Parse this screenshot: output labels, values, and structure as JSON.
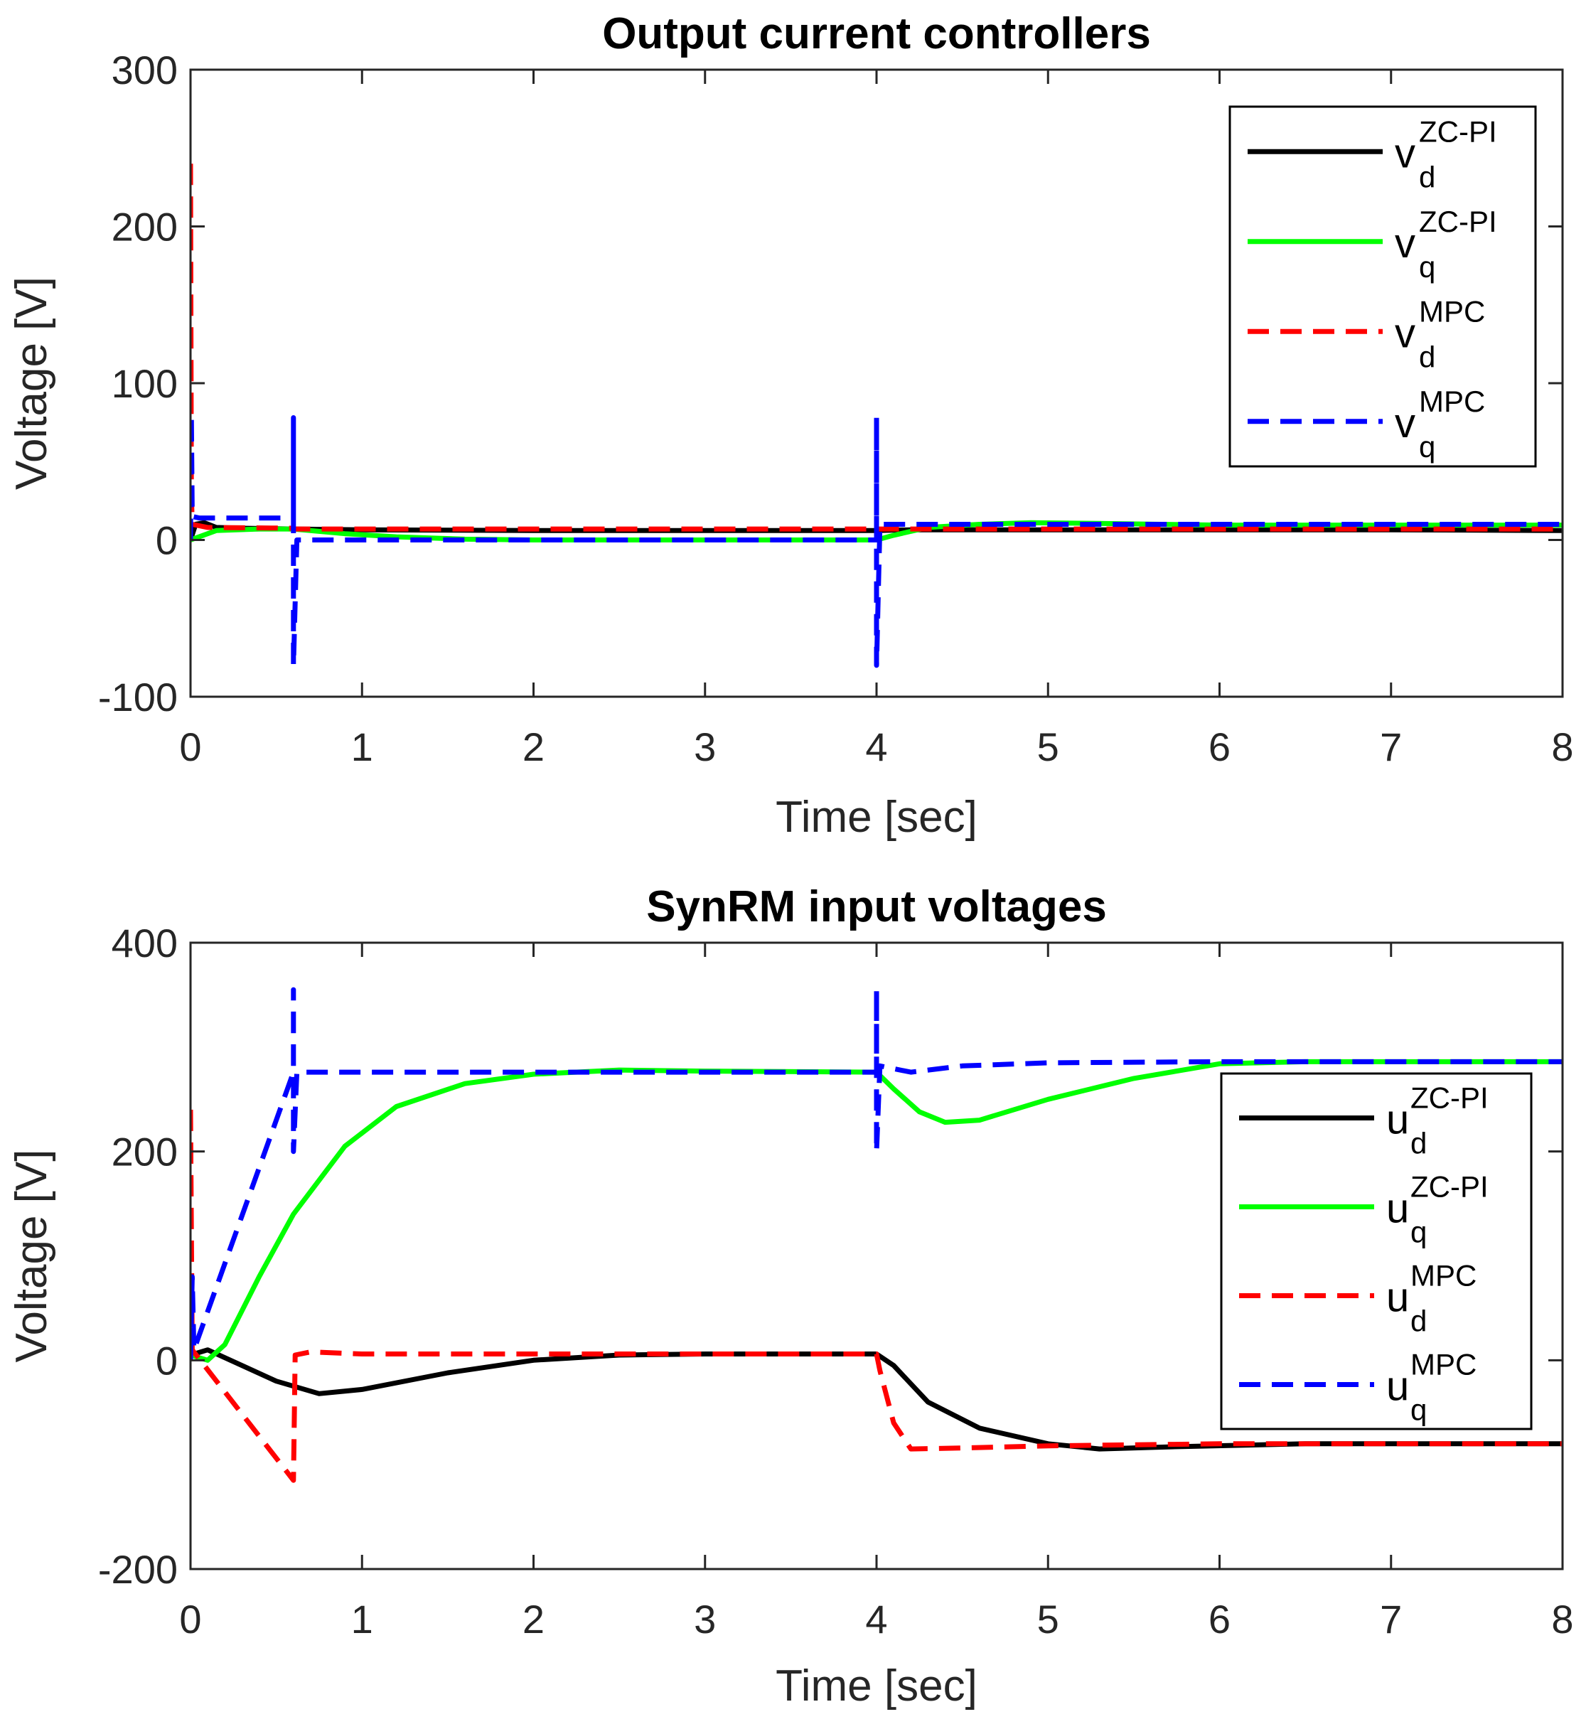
{
  "chart_data": [
    {
      "type": "line",
      "title": "Output current controllers",
      "xlabel": "Time [sec]",
      "ylabel": "Voltage [V]",
      "xlim": [
        0,
        8
      ],
      "ylim": [
        -100,
        300
      ],
      "xticks": [
        0,
        1,
        2,
        3,
        4,
        5,
        6,
        7,
        8
      ],
      "yticks": [
        -100,
        0,
        100,
        200,
        300
      ],
      "xtick_labels": [
        "0",
        "1",
        "2",
        "3",
        "4",
        "5",
        "6",
        "7",
        "8"
      ],
      "ytick_labels": [
        "-100",
        "0",
        "100",
        "200",
        "300"
      ],
      "grid": false,
      "legend_position": "top-right",
      "series": [
        {
          "base": "v",
          "sup": "ZC-PI",
          "sub": "d",
          "color": "#000000",
          "dash": "solid",
          "points": [
            [
              0,
              0
            ],
            [
              0.03,
              10
            ],
            [
              0.08,
              11
            ],
            [
              0.15,
              8
            ],
            [
              0.3,
              7.5
            ],
            [
              0.6,
              7
            ],
            [
              1,
              6.5
            ],
            [
              2,
              6
            ],
            [
              3,
              6
            ],
            [
              4,
              6
            ],
            [
              4.2,
              6.5
            ],
            [
              5,
              6.5
            ],
            [
              6,
              6.5
            ],
            [
              7,
              6.5
            ],
            [
              8,
              6
            ]
          ]
        },
        {
          "base": "v",
          "sup": "ZC-PI",
          "sub": "q",
          "color": "#00ff00",
          "dash": "solid",
          "points": [
            [
              0,
              0
            ],
            [
              0.05,
              2
            ],
            [
              0.15,
              6
            ],
            [
              0.4,
              7
            ],
            [
              0.6,
              7
            ],
            [
              0.9,
              4
            ],
            [
              1.2,
              2
            ],
            [
              1.6,
              0.5
            ],
            [
              2,
              0
            ],
            [
              3,
              0
            ],
            [
              4,
              0
            ],
            [
              4.1,
              3
            ],
            [
              4.3,
              8
            ],
            [
              4.6,
              10
            ],
            [
              4.9,
              11
            ],
            [
              5.3,
              10.5
            ],
            [
              6,
              9.5
            ],
            [
              7,
              9.5
            ],
            [
              8,
              9.5
            ]
          ]
        },
        {
          "base": "v",
          "sup": "MPC",
          "sub": "d",
          "color": "#ff0000",
          "dash": "dashed",
          "points": [
            [
              0,
              240
            ],
            [
              0.005,
              30
            ],
            [
              0.01,
              10
            ],
            [
              0.1,
              8
            ],
            [
              0.6,
              7.5
            ],
            [
              0.61,
              7
            ],
            [
              1,
              7
            ],
            [
              2,
              7
            ],
            [
              3,
              7
            ],
            [
              4,
              7
            ],
            [
              4.05,
              7
            ],
            [
              5,
              7
            ],
            [
              6,
              7
            ],
            [
              7,
              7
            ],
            [
              8,
              7
            ]
          ]
        },
        {
          "base": "v",
          "sup": "MPC",
          "sub": "q",
          "color": "#0000ff",
          "dash": "dashed",
          "points": [
            [
              0,
              0
            ],
            [
              0.005,
              80
            ],
            [
              0.01,
              15
            ],
            [
              0.05,
              14
            ],
            [
              0.6,
              14
            ],
            [
              0.6,
              78
            ],
            [
              0.6,
              -80
            ],
            [
              0.62,
              0
            ],
            [
              1,
              0
            ],
            [
              2,
              0
            ],
            [
              3,
              0
            ],
            [
              4,
              0
            ],
            [
              4,
              78
            ],
            [
              4,
              -80
            ],
            [
              4.02,
              10
            ],
            [
              5,
              10
            ],
            [
              6,
              10
            ],
            [
              7,
              10
            ],
            [
              8,
              10
            ]
          ]
        }
      ]
    },
    {
      "type": "line",
      "title": "SynRM input voltages",
      "xlabel": "Time [sec]",
      "ylabel": "Voltage [V]",
      "xlim": [
        0,
        8
      ],
      "ylim": [
        -200,
        400
      ],
      "xticks": [
        0,
        1,
        2,
        3,
        4,
        5,
        6,
        7,
        8
      ],
      "yticks": [
        -200,
        0,
        200,
        400
      ],
      "xtick_labels": [
        "0",
        "1",
        "2",
        "3",
        "4",
        "5",
        "6",
        "7",
        "8"
      ],
      "ytick_labels": [
        "-200",
        "0",
        "200",
        "400"
      ],
      "grid": false,
      "legend_position": "right",
      "series": [
        {
          "base": "u",
          "sup": "ZC-PI",
          "sub": "d",
          "color": "#000000",
          "dash": "solid",
          "points": [
            [
              0,
              5
            ],
            [
              0.1,
              10
            ],
            [
              0.3,
              -5
            ],
            [
              0.5,
              -20
            ],
            [
              0.75,
              -32
            ],
            [
              1,
              -28
            ],
            [
              1.5,
              -12
            ],
            [
              2,
              0
            ],
            [
              2.5,
              5
            ],
            [
              3,
              6
            ],
            [
              3.5,
              6
            ],
            [
              4,
              6
            ],
            [
              4.1,
              -5
            ],
            [
              4.3,
              -40
            ],
            [
              4.6,
              -65
            ],
            [
              5,
              -80
            ],
            [
              5.3,
              -85
            ],
            [
              5.7,
              -83
            ],
            [
              6.5,
              -80
            ],
            [
              7,
              -80
            ],
            [
              8,
              -80
            ]
          ]
        },
        {
          "base": "u",
          "sup": "ZC-PI",
          "sub": "q",
          "color": "#00ff00",
          "dash": "solid",
          "points": [
            [
              0,
              5
            ],
            [
              0.1,
              0
            ],
            [
              0.2,
              15
            ],
            [
              0.4,
              80
            ],
            [
              0.6,
              140
            ],
            [
              0.9,
              205
            ],
            [
              1.2,
              243
            ],
            [
              1.6,
              265
            ],
            [
              2,
              274
            ],
            [
              2.5,
              278
            ],
            [
              3,
              277
            ],
            [
              4,
              276
            ],
            [
              4.1,
              260
            ],
            [
              4.25,
              238
            ],
            [
              4.4,
              228
            ],
            [
              4.6,
              230
            ],
            [
              5,
              250
            ],
            [
              5.5,
              270
            ],
            [
              6,
              284
            ],
            [
              6.5,
              286
            ],
            [
              7,
              286
            ],
            [
              8,
              286
            ]
          ]
        },
        {
          "base": "u",
          "sup": "MPC",
          "sub": "d",
          "color": "#ff0000",
          "dash": "dashed",
          "points": [
            [
              0,
              240
            ],
            [
              0.01,
              10
            ],
            [
              0.6,
              -115
            ],
            [
              0.61,
              5
            ],
            [
              0.7,
              8
            ],
            [
              1,
              6
            ],
            [
              2,
              6
            ],
            [
              3,
              6
            ],
            [
              4,
              6
            ],
            [
              4.02,
              -10
            ],
            [
              4.1,
              -60
            ],
            [
              4.2,
              -85
            ],
            [
              4.5,
              -84
            ],
            [
              5,
              -82
            ],
            [
              6,
              -80
            ],
            [
              7,
              -80
            ],
            [
              8,
              -80
            ]
          ]
        },
        {
          "base": "u",
          "sup": "MPC",
          "sub": "q",
          "color": "#0000ff",
          "dash": "dashed",
          "points": [
            [
              0,
              0
            ],
            [
              0.01,
              80
            ],
            [
              0.02,
              10
            ],
            [
              0.6,
              276
            ],
            [
              0.6,
              355
            ],
            [
              0.6,
              200
            ],
            [
              0.62,
              276
            ],
            [
              1,
              276
            ],
            [
              2,
              276
            ],
            [
              3,
              276
            ],
            [
              4,
              276
            ],
            [
              4,
              355
            ],
            [
              4,
              200
            ],
            [
              4.02,
              282
            ],
            [
              4.2,
              276
            ],
            [
              4.5,
              282
            ],
            [
              5,
              285
            ],
            [
              6,
              286
            ],
            [
              7,
              286
            ],
            [
              8,
              286
            ]
          ]
        }
      ]
    }
  ]
}
